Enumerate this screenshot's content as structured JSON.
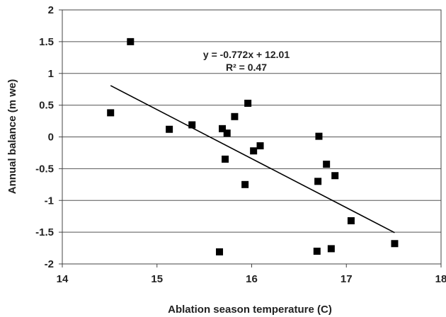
{
  "chart_data": {
    "type": "scatter",
    "title": "",
    "xlabel": "Ablation season temperature (C)",
    "ylabel": "Annual balance (m we)",
    "xlim": [
      14,
      18
    ],
    "ylim": [
      -2,
      2
    ],
    "x_ticks": [
      "14",
      "15",
      "16",
      "17",
      "18"
    ],
    "y_ticks": [
      "2",
      "1.5",
      "1",
      "0.5",
      "0",
      "-0.5",
      "-1",
      "-1.5",
      "-2"
    ],
    "grid": "horizontal",
    "legend": "none",
    "marker_color": "#000000",
    "points": [
      {
        "x": 14.51,
        "y": 0.38
      },
      {
        "x": 14.72,
        "y": 1.5
      },
      {
        "x": 15.13,
        "y": 0.12
      },
      {
        "x": 15.37,
        "y": 0.19
      },
      {
        "x": 15.66,
        "y": -1.81
      },
      {
        "x": 15.69,
        "y": 0.13
      },
      {
        "x": 15.72,
        "y": -0.35
      },
      {
        "x": 15.74,
        "y": 0.06
      },
      {
        "x": 15.82,
        "y": 0.32
      },
      {
        "x": 15.93,
        "y": -0.75
      },
      {
        "x": 15.96,
        "y": 0.53
      },
      {
        "x": 16.02,
        "y": -0.22
      },
      {
        "x": 16.09,
        "y": -0.14
      },
      {
        "x": 16.69,
        "y": -1.8
      },
      {
        "x": 16.7,
        "y": -0.7
      },
      {
        "x": 16.71,
        "y": 0.01
      },
      {
        "x": 16.79,
        "y": -0.43
      },
      {
        "x": 16.84,
        "y": -1.76
      },
      {
        "x": 16.88,
        "y": -0.61
      },
      {
        "x": 17.05,
        "y": -1.32
      },
      {
        "x": 17.51,
        "y": -1.68
      }
    ],
    "trendline": {
      "x_start": 14.51,
      "x_end": 17.51,
      "slope": -0.772,
      "intercept": 12.01
    },
    "annotations": {
      "equation": "y = -0.772x + 12.01",
      "r_squared": "R² = 0.47"
    }
  }
}
